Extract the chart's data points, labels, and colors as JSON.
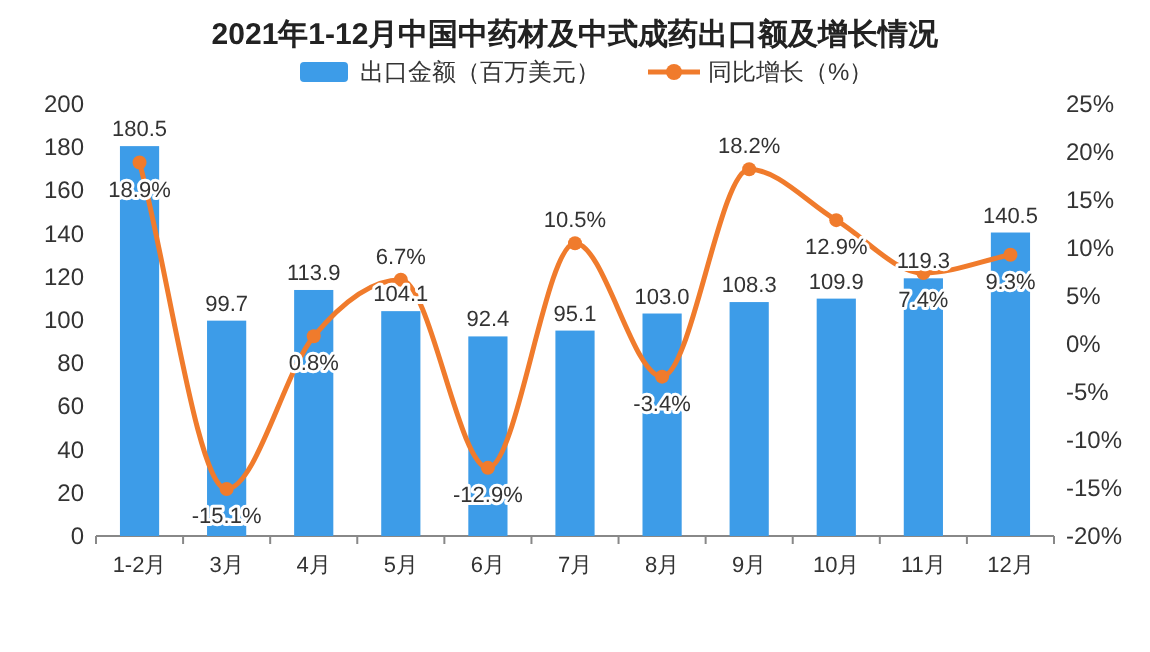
{
  "chart_data": {
    "type": "bar",
    "title": "2021年1-12月中国中药材及中式成药出口额及增长情况",
    "categories": [
      "1-2月",
      "3月",
      "4月",
      "5月",
      "6月",
      "7月",
      "8月",
      "9月",
      "10月",
      "11月",
      "12月"
    ],
    "series": [
      {
        "name": "出口金额（百万美元）",
        "color": "#3d9ce8",
        "values": [
          180.5,
          99.7,
          113.9,
          104.1,
          92.4,
          95.1,
          103.0,
          108.3,
          109.9,
          119.3,
          140.5
        ],
        "value_labels": [
          "180.5",
          "99.7",
          "113.9",
          "104.1",
          "92.4",
          "95.1",
          "103.0",
          "108.3",
          "109.9",
          "119.3",
          "140.5"
        ]
      },
      {
        "name": "同比增长（%）",
        "type": "line",
        "axis": "y2",
        "color": "#f07b2c",
        "marker": "circle",
        "values": [
          18.9,
          -15.1,
          0.8,
          6.7,
          -12.9,
          10.5,
          -3.4,
          18.2,
          12.9,
          7.4,
          9.3
        ],
        "value_labels": [
          "18.9%",
          "-15.1%",
          "0.8%",
          "6.7%",
          "-12.9%",
          "10.5%",
          "-3.4%",
          "18.2%",
          "12.9%",
          "7.4%",
          "9.3%"
        ]
      }
    ],
    "ylim": [
      0,
      200
    ],
    "yticks": [
      0,
      20,
      40,
      60,
      80,
      100,
      120,
      140,
      160,
      180,
      200
    ],
    "y2lim": [
      -20,
      25
    ],
    "y2ticks": [
      {
        "value": -20,
        "label": "-20%"
      },
      {
        "value": -15,
        "label": "-15%"
      },
      {
        "value": -10,
        "label": "-10%"
      },
      {
        "value": -5,
        "label": "-5%"
      },
      {
        "value": 0,
        "label": "0%"
      },
      {
        "value": 5,
        "label": "5%"
      },
      {
        "value": 10,
        "label": "10%"
      },
      {
        "value": 15,
        "label": "15%"
      },
      {
        "value": 20,
        "label": "20%"
      },
      {
        "value": 25,
        "label": "25%"
      }
    ],
    "grid": false,
    "legend": "top"
  }
}
